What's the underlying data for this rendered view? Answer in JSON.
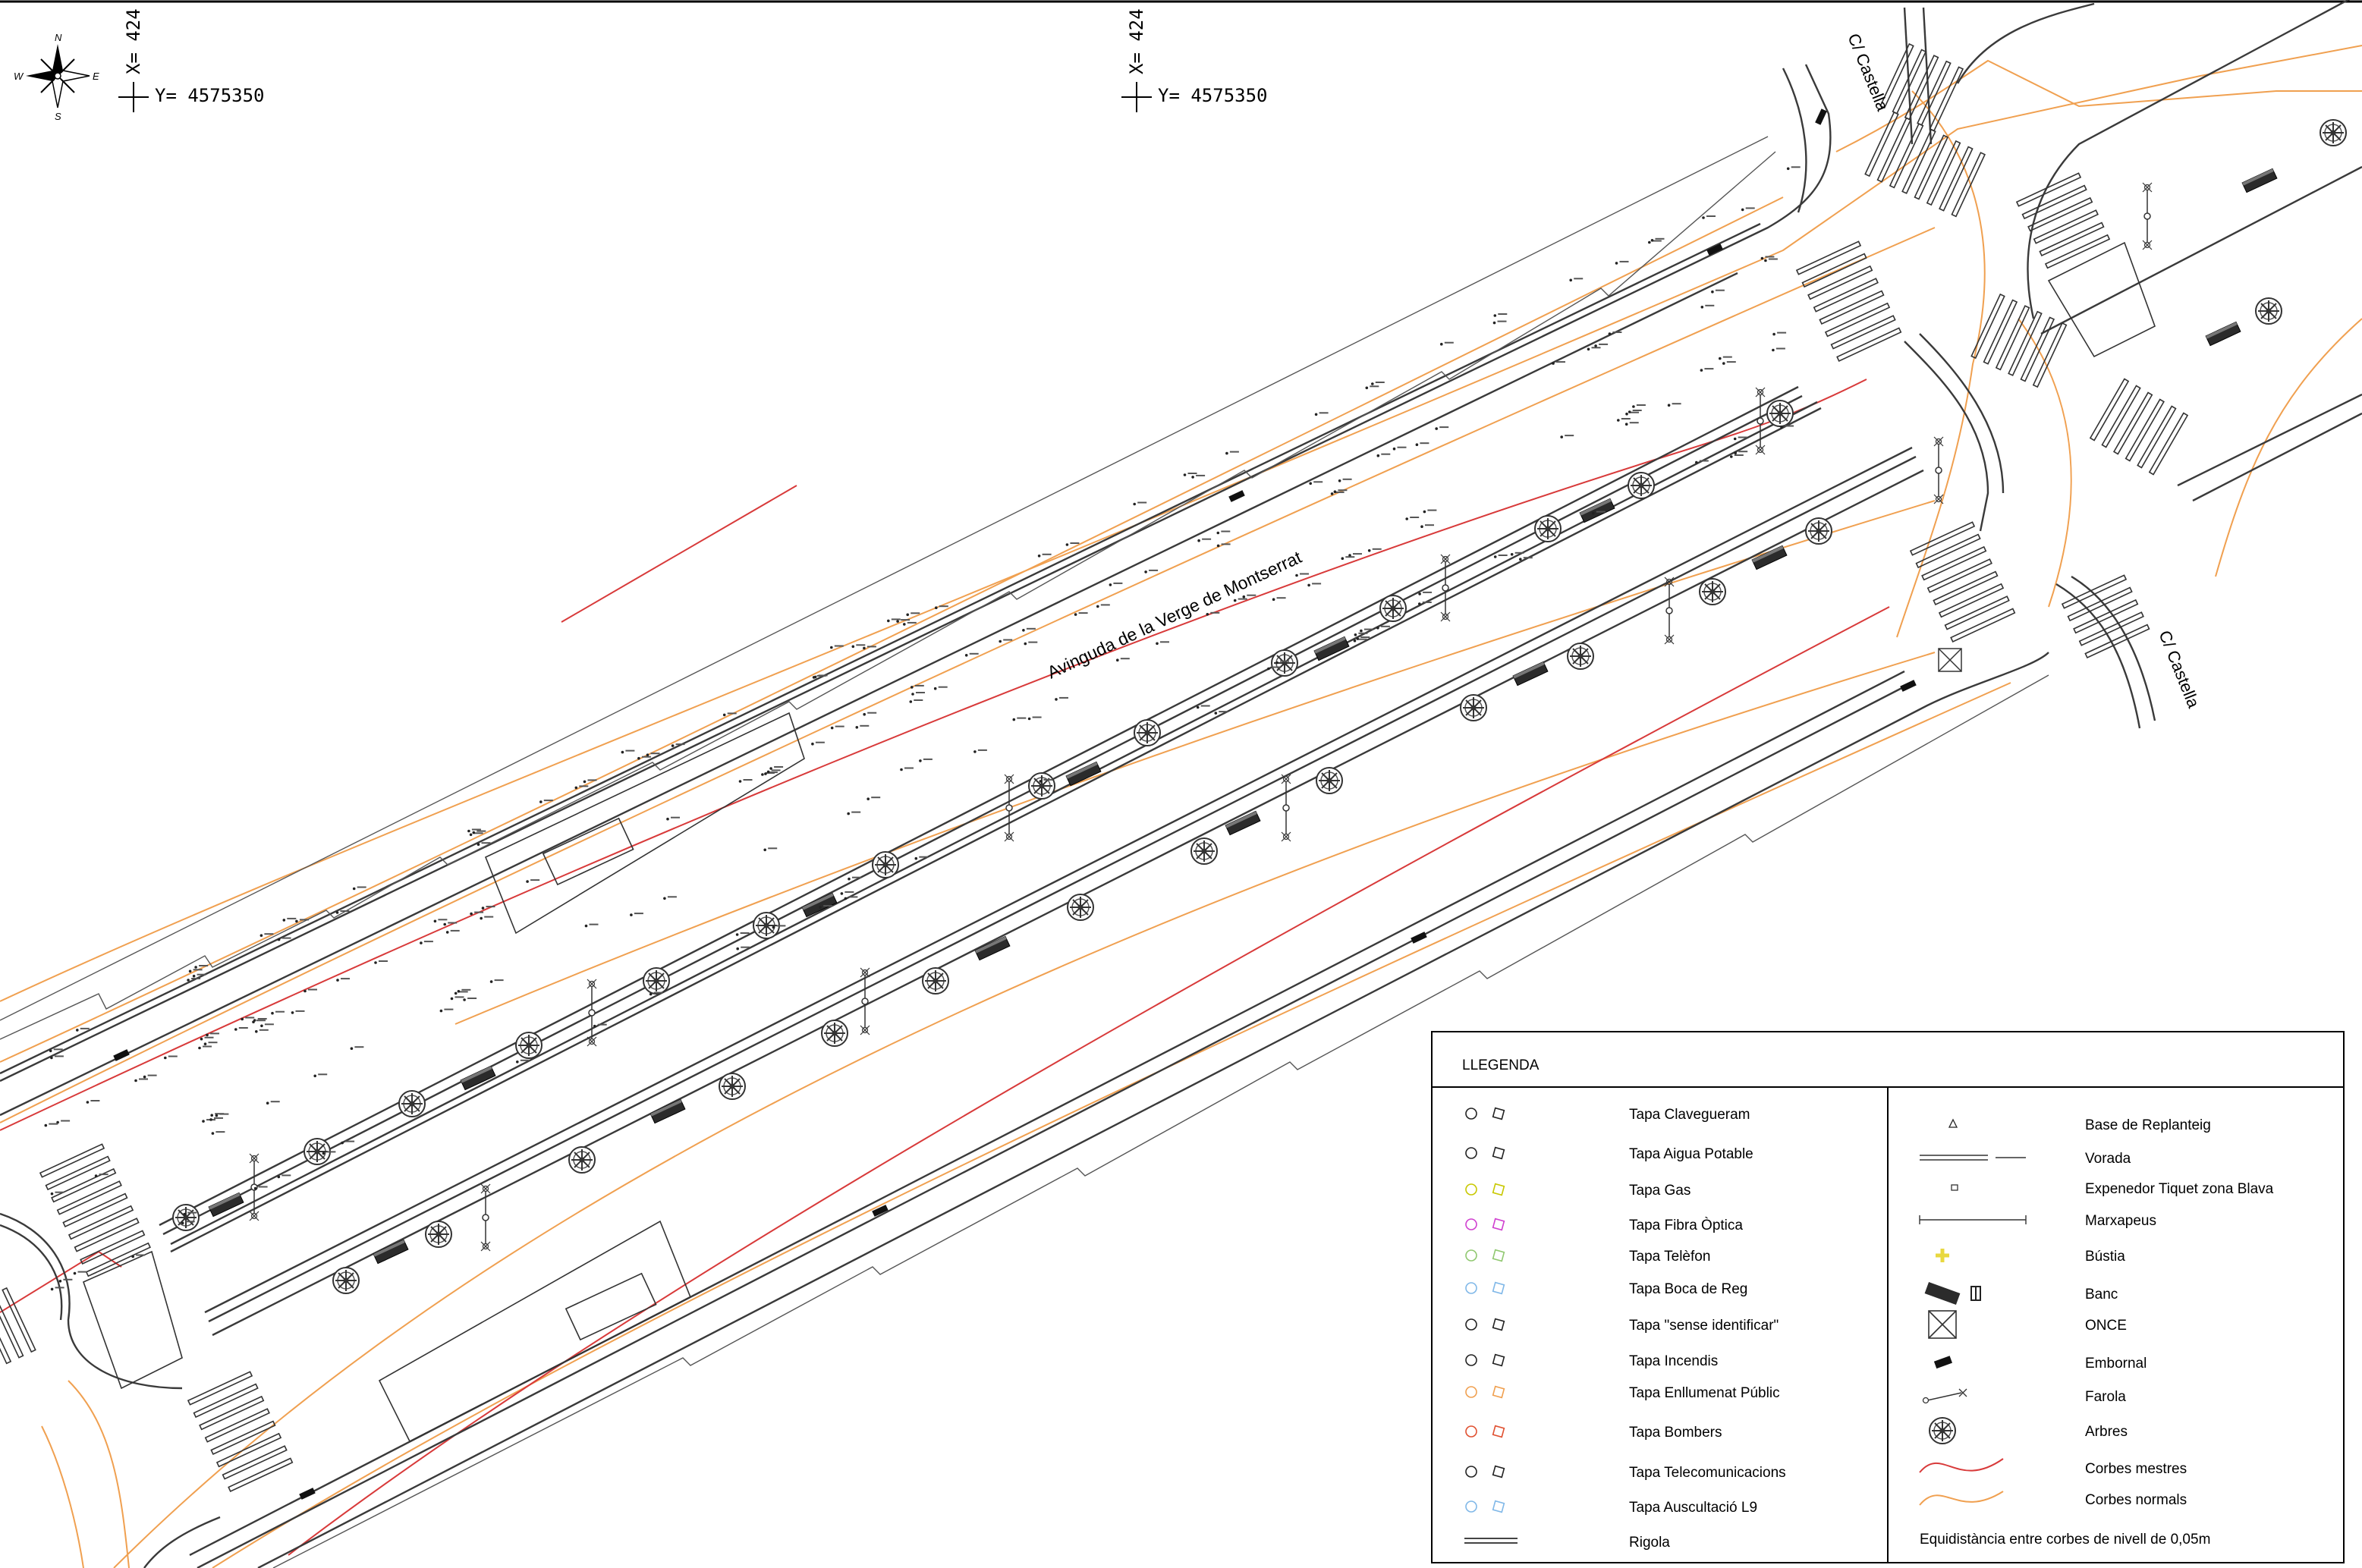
{
  "map": {
    "coords": [
      {
        "x_label": "X= 424",
        "y_label": "Y= 4575350"
      },
      {
        "x_label": "X= 424",
        "y_label": "Y= 4575350"
      }
    ],
    "compass": {
      "n": "N",
      "s": "S",
      "e": "E",
      "w": "W"
    },
    "street_labels": {
      "avenue": "Avinguda de la Verge de Montserrat",
      "castella_top": "C/ Castella",
      "castella_right": "C/ Castella"
    },
    "colors": {
      "curb": "#3a3a3a",
      "master_contour": "#d83a3a",
      "normal_contour": "#f0a050",
      "tree": "#333333",
      "bench": "#333333",
      "text": "#000000"
    }
  },
  "legend": {
    "title": "LLEGENDA",
    "left_items": [
      {
        "label": "Tapa Clavegueram",
        "color": "#222222"
      },
      {
        "label": "Tapa Aigua Potable",
        "color": "#222222"
      },
      {
        "label": "Tapa Gas",
        "color": "#c8c800"
      },
      {
        "label": "Tapa Fibra Òptica",
        "color": "#d040d0"
      },
      {
        "label": "Tapa Telèfon",
        "color": "#90c870"
      },
      {
        "label": "Tapa Boca de Reg",
        "color": "#80b8e8"
      },
      {
        "label": "Tapa \"sense identificar\"",
        "color": "#222222"
      },
      {
        "label": "Tapa Incendis",
        "color": "#222222"
      },
      {
        "label": "Tapa Enllumenat Públic",
        "color": "#f0a050"
      },
      {
        "label": "Tapa Bombers",
        "color": "#e05030"
      },
      {
        "label": "Tapa Telecomunicacions",
        "color": "#222222"
      },
      {
        "label": "Tapa Auscultació L9",
        "color": "#80b8e8"
      },
      {
        "label": "Rigola",
        "color": "#444444"
      }
    ],
    "right_items": [
      {
        "label": "Base de Replanteig",
        "icon": "triangle-icon"
      },
      {
        "label": "Vorada",
        "icon": "curb-line-icon"
      },
      {
        "label": "Expenedor Tiquet zona Blava",
        "icon": "ticket-machine-icon"
      },
      {
        "label": "Marxapeus",
        "icon": "footstep-line-icon"
      },
      {
        "label": "Bústia",
        "icon": "mailbox-icon"
      },
      {
        "label": "Banc",
        "icon": "bench-icon"
      },
      {
        "label": "ONCE",
        "icon": "once-kiosk-icon"
      },
      {
        "label": "Embornal",
        "icon": "drain-icon"
      },
      {
        "label": "Farola",
        "icon": "streetlight-icon"
      },
      {
        "label": "Arbres",
        "icon": "tree-icon"
      },
      {
        "label": "Corbes mestres",
        "icon": "master-contour-icon"
      },
      {
        "label": "Corbes normals",
        "icon": "normal-contour-icon"
      }
    ],
    "footer": "Equidistància entre corbes de nivell de 0,05m"
  }
}
